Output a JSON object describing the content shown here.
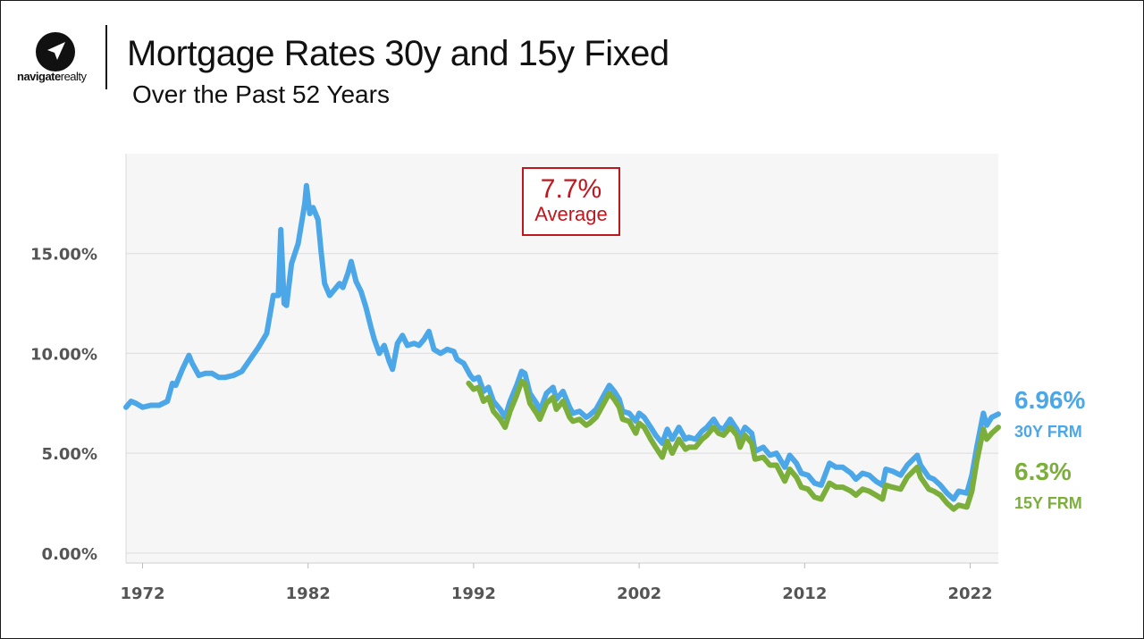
{
  "brand": {
    "name_bold": "navigate",
    "name_light": "realty",
    "logo_icon": "navigation-arrow-icon"
  },
  "title": "Mortgage Rates 30y and 15y Fixed",
  "subtitle": "Over the Past 52 Years",
  "annotation": {
    "value": "7.7%",
    "label": "Average",
    "color": "#c0161d"
  },
  "end_labels": {
    "thirty": {
      "value": "6.96%",
      "label": "30Y FRM",
      "color": "#4ba7e8"
    },
    "fifteen": {
      "value": "6.3%",
      "label": "15Y FRM",
      "color": "#7cae3b"
    }
  },
  "chart_data": {
    "type": "line",
    "title": "Mortgage Rates 30y and 15y Fixed",
    "subtitle": "Over the Past 52 Years",
    "xlabel": "",
    "ylabel": "",
    "xlim": [
      1971,
      2023.7
    ],
    "ylim": [
      -0.5,
      20
    ],
    "x_ticks": [
      1972,
      1982,
      1992,
      2002,
      2012,
      2022
    ],
    "x_tick_labels": [
      "1972",
      "1982",
      "1992",
      "2002",
      "2012",
      "2022"
    ],
    "y_ticks": [
      0,
      5,
      10,
      15
    ],
    "y_tick_labels": [
      "0.00%",
      "5.00%",
      "10.00%",
      "15.00%"
    ],
    "grid": true,
    "legend": "none",
    "series": [
      {
        "name": "30Y FRM",
        "color": "#4ba7e8",
        "points": [
          [
            1971.0,
            7.3
          ],
          [
            1971.3,
            7.6
          ],
          [
            1971.6,
            7.5
          ],
          [
            1972.0,
            7.3
          ],
          [
            1972.5,
            7.4
          ],
          [
            1973.0,
            7.4
          ],
          [
            1973.5,
            7.6
          ],
          [
            1973.8,
            8.5
          ],
          [
            1974.0,
            8.4
          ],
          [
            1974.4,
            9.2
          ],
          [
            1974.8,
            9.9
          ],
          [
            1975.0,
            9.5
          ],
          [
            1975.4,
            8.9
          ],
          [
            1975.8,
            9.0
          ],
          [
            1976.2,
            9.0
          ],
          [
            1976.6,
            8.8
          ],
          [
            1977.0,
            8.8
          ],
          [
            1977.5,
            8.9
          ],
          [
            1978.0,
            9.1
          ],
          [
            1978.5,
            9.7
          ],
          [
            1979.0,
            10.3
          ],
          [
            1979.5,
            11.0
          ],
          [
            1979.9,
            12.9
          ],
          [
            1980.2,
            12.9
          ],
          [
            1980.35,
            16.2
          ],
          [
            1980.55,
            12.5
          ],
          [
            1980.7,
            12.4
          ],
          [
            1981.0,
            14.5
          ],
          [
            1981.4,
            15.5
          ],
          [
            1981.8,
            17.5
          ],
          [
            1981.9,
            18.4
          ],
          [
            1982.1,
            17.0
          ],
          [
            1982.3,
            17.3
          ],
          [
            1982.6,
            16.7
          ],
          [
            1982.8,
            15.0
          ],
          [
            1983.0,
            13.5
          ],
          [
            1983.3,
            12.9
          ],
          [
            1983.6,
            13.2
          ],
          [
            1983.9,
            13.5
          ],
          [
            1984.1,
            13.3
          ],
          [
            1984.4,
            14.0
          ],
          [
            1984.6,
            14.6
          ],
          [
            1984.9,
            13.6
          ],
          [
            1985.2,
            13.1
          ],
          [
            1985.5,
            12.3
          ],
          [
            1985.8,
            11.3
          ],
          [
            1986.0,
            10.7
          ],
          [
            1986.3,
            10.0
          ],
          [
            1986.6,
            10.4
          ],
          [
            1986.9,
            9.6
          ],
          [
            1987.1,
            9.2
          ],
          [
            1987.4,
            10.5
          ],
          [
            1987.7,
            10.9
          ],
          [
            1988.0,
            10.4
          ],
          [
            1988.4,
            10.5
          ],
          [
            1988.7,
            10.4
          ],
          [
            1989.0,
            10.7
          ],
          [
            1989.3,
            11.1
          ],
          [
            1989.6,
            10.2
          ],
          [
            1990.0,
            10.0
          ],
          [
            1990.4,
            10.2
          ],
          [
            1990.8,
            10.1
          ],
          [
            1991.0,
            9.7
          ],
          [
            1991.4,
            9.5
          ],
          [
            1991.8,
            8.9
          ],
          [
            1992.0,
            8.7
          ],
          [
            1992.3,
            8.8
          ],
          [
            1992.6,
            8.1
          ],
          [
            1992.9,
            8.3
          ],
          [
            1993.2,
            7.6
          ],
          [
            1993.6,
            7.2
          ],
          [
            1993.9,
            6.8
          ],
          [
            1994.2,
            7.6
          ],
          [
            1994.6,
            8.4
          ],
          [
            1994.9,
            9.1
          ],
          [
            1995.1,
            9.0
          ],
          [
            1995.4,
            8.0
          ],
          [
            1995.8,
            7.5
          ],
          [
            1996.0,
            7.1
          ],
          [
            1996.4,
            8.0
          ],
          [
            1996.8,
            8.3
          ],
          [
            1997.0,
            7.7
          ],
          [
            1997.4,
            8.1
          ],
          [
            1997.8,
            7.3
          ],
          [
            1998.0,
            7.0
          ],
          [
            1998.4,
            7.1
          ],
          [
            1998.8,
            6.8
          ],
          [
            1999.0,
            6.9
          ],
          [
            1999.4,
            7.2
          ],
          [
            1999.8,
            7.8
          ],
          [
            2000.2,
            8.4
          ],
          [
            2000.5,
            8.1
          ],
          [
            2000.8,
            7.7
          ],
          [
            2001.0,
            7.1
          ],
          [
            2001.4,
            7.0
          ],
          [
            2001.8,
            6.6
          ],
          [
            2002.0,
            7.0
          ],
          [
            2002.3,
            6.8
          ],
          [
            2002.7,
            6.3
          ],
          [
            2003.0,
            5.9
          ],
          [
            2003.4,
            5.5
          ],
          [
            2003.7,
            6.2
          ],
          [
            2004.0,
            5.7
          ],
          [
            2004.4,
            6.3
          ],
          [
            2004.8,
            5.7
          ],
          [
            2005.0,
            5.8
          ],
          [
            2005.4,
            5.7
          ],
          [
            2005.8,
            6.1
          ],
          [
            2006.1,
            6.3
          ],
          [
            2006.5,
            6.7
          ],
          [
            2006.8,
            6.3
          ],
          [
            2007.1,
            6.2
          ],
          [
            2007.5,
            6.7
          ],
          [
            2007.9,
            6.2
          ],
          [
            2008.1,
            5.8
          ],
          [
            2008.4,
            6.3
          ],
          [
            2008.8,
            6.0
          ],
          [
            2009.0,
            5.1
          ],
          [
            2009.5,
            5.3
          ],
          [
            2009.9,
            4.9
          ],
          [
            2010.3,
            5.0
          ],
          [
            2010.8,
            4.3
          ],
          [
            2011.1,
            4.9
          ],
          [
            2011.5,
            4.5
          ],
          [
            2011.8,
            4.0
          ],
          [
            2012.2,
            3.9
          ],
          [
            2012.6,
            3.5
          ],
          [
            2013.0,
            3.4
          ],
          [
            2013.5,
            4.5
          ],
          [
            2013.9,
            4.3
          ],
          [
            2014.3,
            4.3
          ],
          [
            2014.8,
            4.0
          ],
          [
            2015.1,
            3.7
          ],
          [
            2015.5,
            4.0
          ],
          [
            2015.9,
            3.9
          ],
          [
            2016.3,
            3.6
          ],
          [
            2016.7,
            3.4
          ],
          [
            2016.9,
            4.2
          ],
          [
            2017.3,
            4.1
          ],
          [
            2017.8,
            3.9
          ],
          [
            2018.2,
            4.4
          ],
          [
            2018.8,
            4.9
          ],
          [
            2019.0,
            4.4
          ],
          [
            2019.5,
            3.8
          ],
          [
            2019.8,
            3.7
          ],
          [
            2020.2,
            3.4
          ],
          [
            2020.6,
            3.0
          ],
          [
            2021.0,
            2.7
          ],
          [
            2021.3,
            3.1
          ],
          [
            2021.8,
            3.0
          ],
          [
            2022.1,
            3.9
          ],
          [
            2022.4,
            5.3
          ],
          [
            2022.8,
            7.0
          ],
          [
            2023.0,
            6.4
          ],
          [
            2023.3,
            6.8
          ],
          [
            2023.7,
            6.96
          ]
        ]
      },
      {
        "name": "15Y FRM",
        "color": "#7cae3b",
        "points": [
          [
            1991.7,
            8.5
          ],
          [
            1992.0,
            8.2
          ],
          [
            1992.3,
            8.3
          ],
          [
            1992.6,
            7.6
          ],
          [
            1992.9,
            7.8
          ],
          [
            1993.2,
            7.1
          ],
          [
            1993.6,
            6.7
          ],
          [
            1993.9,
            6.3
          ],
          [
            1994.2,
            7.1
          ],
          [
            1994.6,
            7.9
          ],
          [
            1994.9,
            8.6
          ],
          [
            1995.1,
            8.5
          ],
          [
            1995.4,
            7.5
          ],
          [
            1995.8,
            7.0
          ],
          [
            1996.0,
            6.7
          ],
          [
            1996.4,
            7.5
          ],
          [
            1996.8,
            7.8
          ],
          [
            1997.0,
            7.2
          ],
          [
            1997.4,
            7.6
          ],
          [
            1997.8,
            6.8
          ],
          [
            1998.0,
            6.6
          ],
          [
            1998.4,
            6.7
          ],
          [
            1998.8,
            6.4
          ],
          [
            1999.0,
            6.5
          ],
          [
            1999.4,
            6.8
          ],
          [
            1999.8,
            7.4
          ],
          [
            2000.2,
            8.0
          ],
          [
            2000.5,
            7.7
          ],
          [
            2000.8,
            7.3
          ],
          [
            2001.0,
            6.7
          ],
          [
            2001.4,
            6.6
          ],
          [
            2001.8,
            6.0
          ],
          [
            2002.0,
            6.5
          ],
          [
            2002.3,
            6.3
          ],
          [
            2002.7,
            5.7
          ],
          [
            2003.0,
            5.3
          ],
          [
            2003.4,
            4.8
          ],
          [
            2003.7,
            5.6
          ],
          [
            2004.0,
            5.0
          ],
          [
            2004.4,
            5.7
          ],
          [
            2004.8,
            5.2
          ],
          [
            2005.0,
            5.3
          ],
          [
            2005.4,
            5.3
          ],
          [
            2005.8,
            5.7
          ],
          [
            2006.1,
            5.9
          ],
          [
            2006.5,
            6.3
          ],
          [
            2006.8,
            6.0
          ],
          [
            2007.1,
            5.9
          ],
          [
            2007.5,
            6.3
          ],
          [
            2007.9,
            5.9
          ],
          [
            2008.1,
            5.3
          ],
          [
            2008.4,
            5.9
          ],
          [
            2008.8,
            5.5
          ],
          [
            2009.0,
            4.7
          ],
          [
            2009.5,
            4.8
          ],
          [
            2009.9,
            4.4
          ],
          [
            2010.3,
            4.4
          ],
          [
            2010.8,
            3.6
          ],
          [
            2011.1,
            4.2
          ],
          [
            2011.5,
            3.8
          ],
          [
            2011.8,
            3.3
          ],
          [
            2012.2,
            3.2
          ],
          [
            2012.6,
            2.8
          ],
          [
            2013.0,
            2.7
          ],
          [
            2013.5,
            3.5
          ],
          [
            2013.9,
            3.3
          ],
          [
            2014.3,
            3.3
          ],
          [
            2014.8,
            3.1
          ],
          [
            2015.1,
            2.9
          ],
          [
            2015.5,
            3.2
          ],
          [
            2015.9,
            3.1
          ],
          [
            2016.3,
            2.9
          ],
          [
            2016.7,
            2.7
          ],
          [
            2016.9,
            3.4
          ],
          [
            2017.3,
            3.3
          ],
          [
            2017.8,
            3.2
          ],
          [
            2018.2,
            3.8
          ],
          [
            2018.8,
            4.3
          ],
          [
            2019.0,
            3.8
          ],
          [
            2019.5,
            3.2
          ],
          [
            2019.8,
            3.1
          ],
          [
            2020.2,
            2.9
          ],
          [
            2020.6,
            2.5
          ],
          [
            2021.0,
            2.2
          ],
          [
            2021.3,
            2.4
          ],
          [
            2021.8,
            2.3
          ],
          [
            2022.1,
            3.1
          ],
          [
            2022.4,
            4.6
          ],
          [
            2022.8,
            6.2
          ],
          [
            2023.0,
            5.7
          ],
          [
            2023.3,
            6.0
          ],
          [
            2023.7,
            6.3
          ]
        ]
      }
    ]
  }
}
